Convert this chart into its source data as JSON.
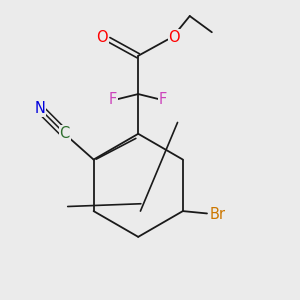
{
  "background_color": "#ebebeb",
  "bond_color": "#1a1a1a",
  "atom_colors": {
    "O": "#ff0000",
    "F": "#cc44bb",
    "N": "#0000dd",
    "C_green": "#2d6e2d",
    "Br": "#cc7700",
    "C": "#1a1a1a"
  },
  "font_size": 10.5,
  "lw_single": 1.3,
  "lw_double": 1.2,
  "lw_triple": 1.1
}
